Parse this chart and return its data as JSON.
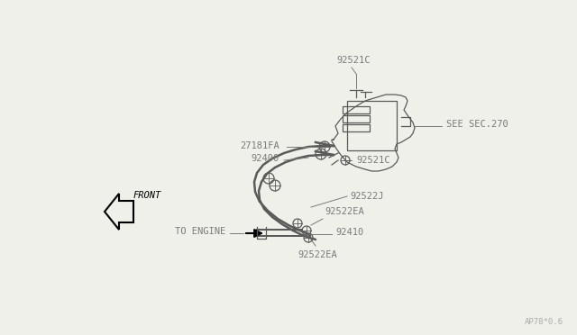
{
  "bg_color": "#f0f0eb",
  "line_color": "#5a5a5a",
  "label_color": "#7a7a7a",
  "watermark": "AP78*0.6",
  "labels": {
    "92521C_top": "92521C",
    "27181FA": "27181FA",
    "92400": "92400",
    "92521C_mid": "92521C",
    "SEE_SEC": "SEE SEC.270",
    "92522J": "92522J",
    "FRONT": "FRONT",
    "92522EA_mid": "92522EA",
    "92410": "92410",
    "TO_ENGINE": "TO ENGINE",
    "92522EA_bot": "92522EA"
  }
}
